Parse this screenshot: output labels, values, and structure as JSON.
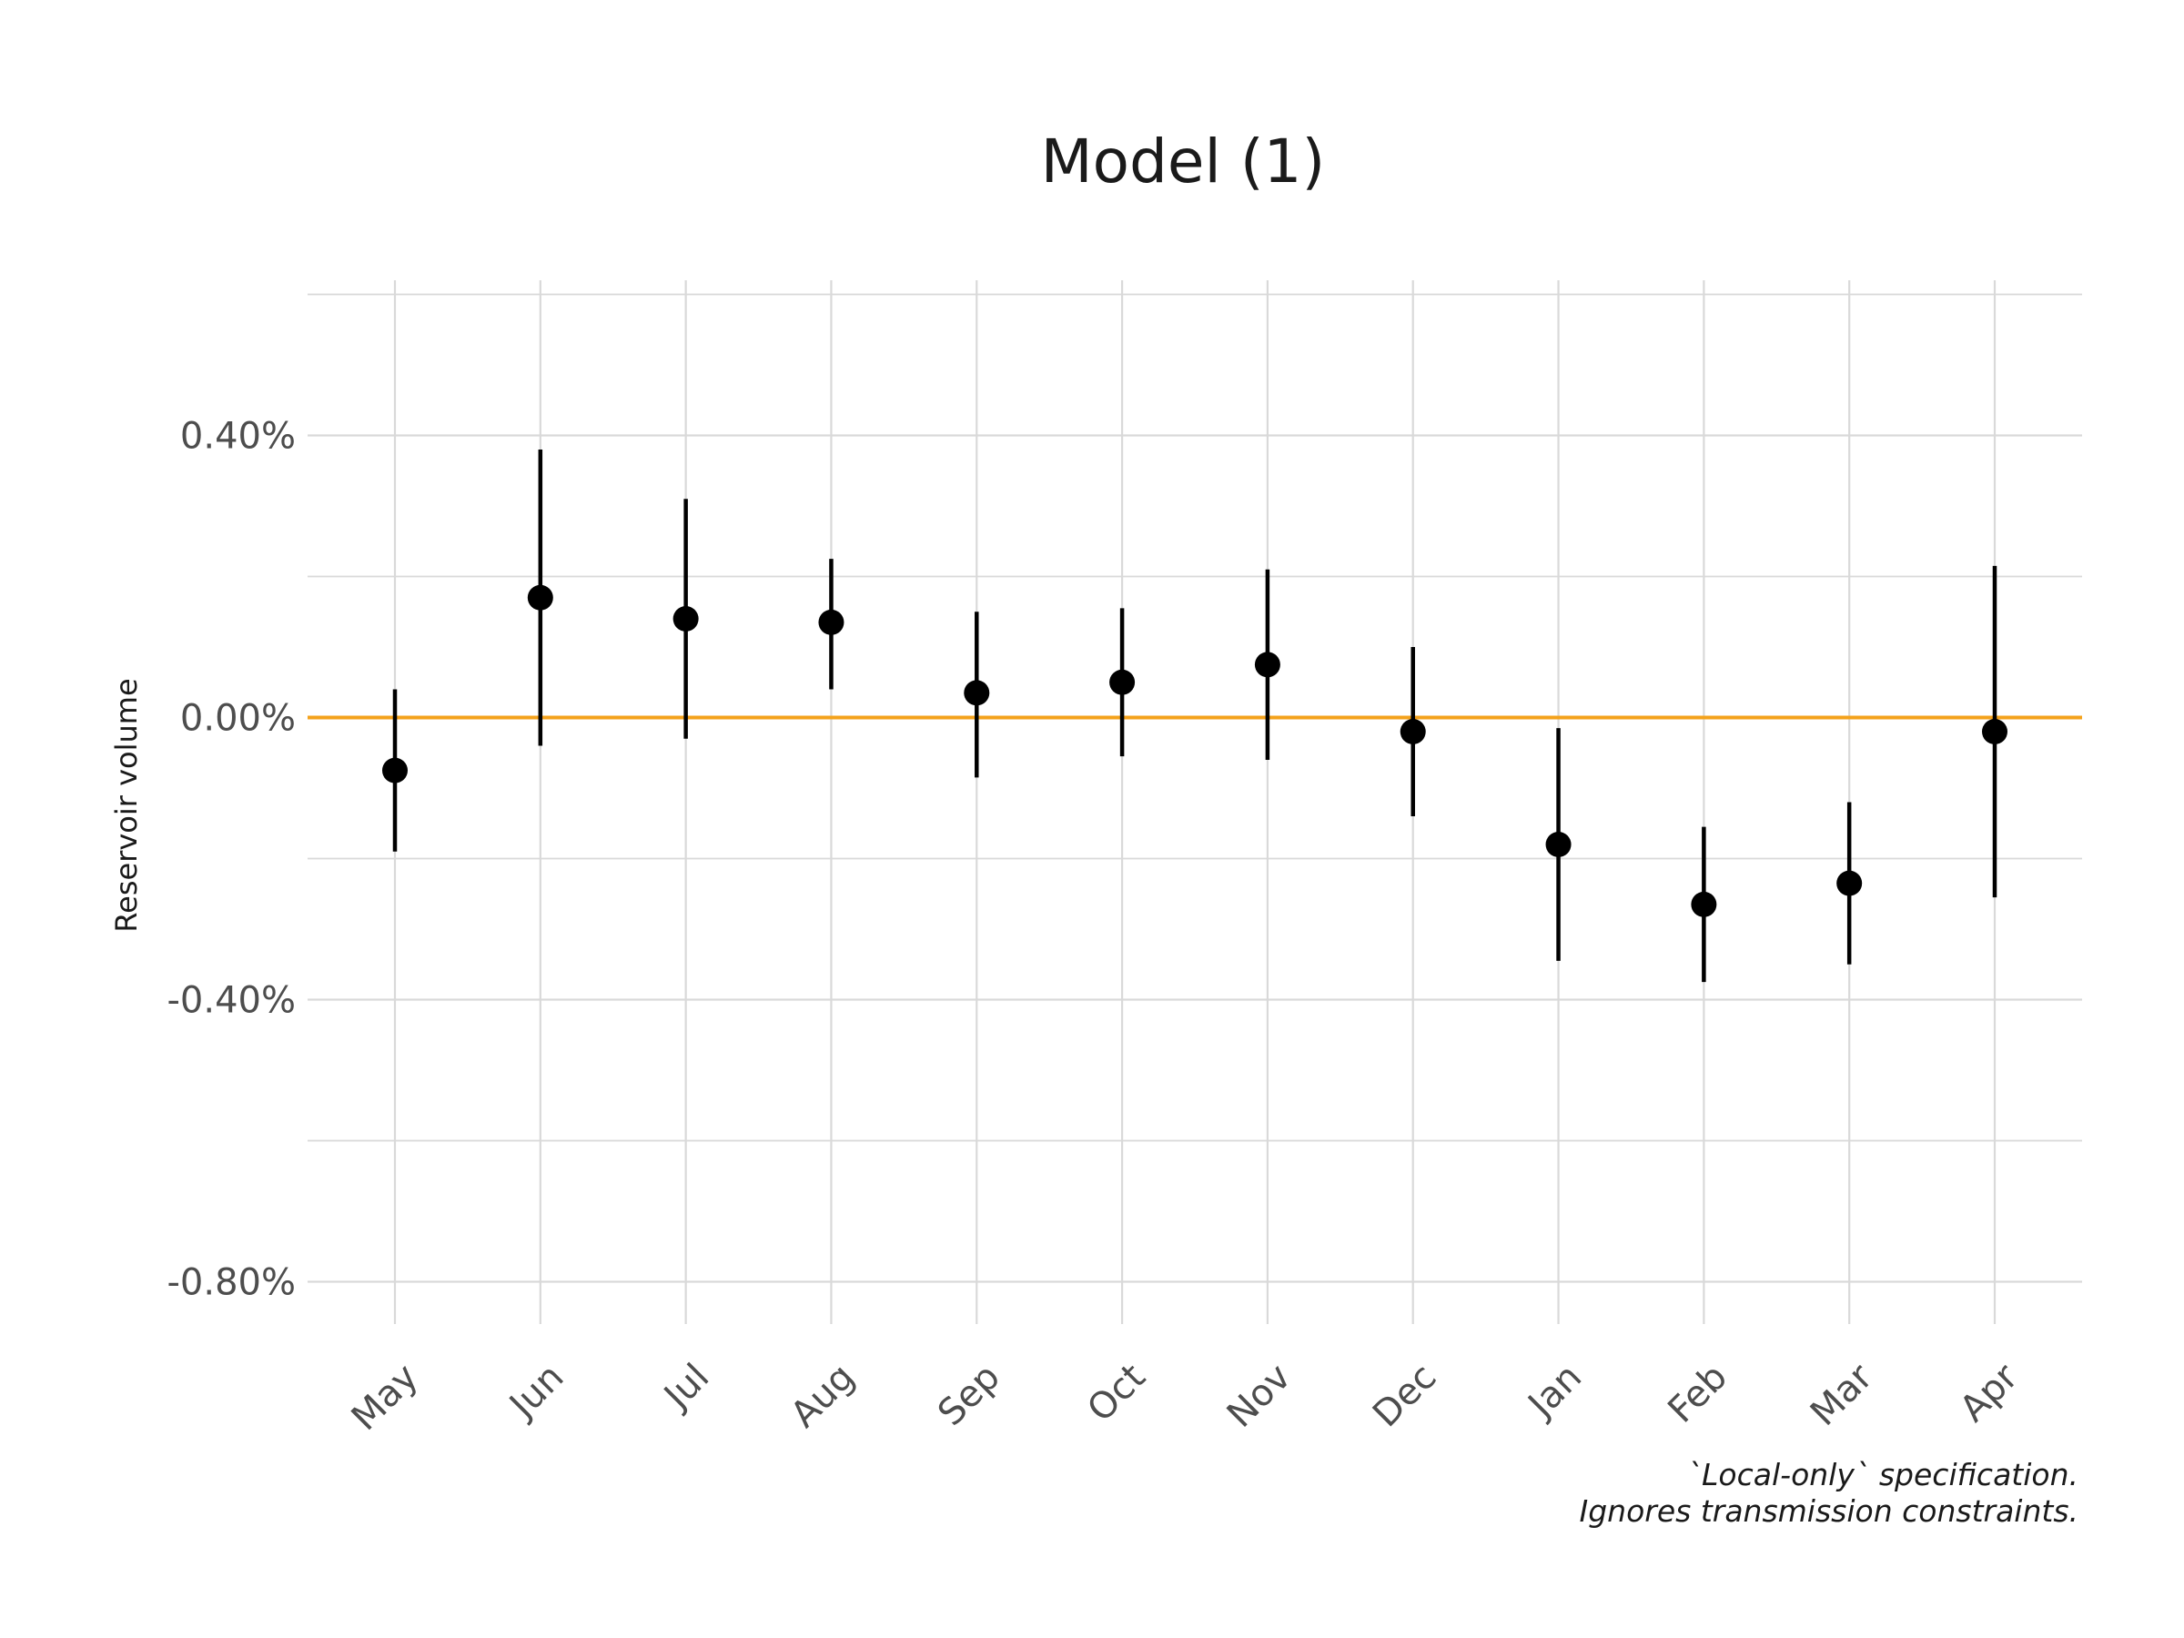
{
  "chart_data": {
    "type": "scatter",
    "title": "Model (1)",
    "xlabel": "",
    "ylabel": "Reservoir volume",
    "categories": [
      "May",
      "Jun",
      "Jul",
      "Aug",
      "Sep",
      "Oct",
      "Nov",
      "Dec",
      "Jan",
      "Feb",
      "Mar",
      "Apr"
    ],
    "series": [
      {
        "estimate": [
          -0.075,
          0.17,
          0.14,
          0.135,
          0.035,
          0.05,
          0.075,
          -0.02,
          -0.18,
          -0.265,
          -0.235,
          -0.02
        ],
        "ci_low": [
          -0.19,
          -0.04,
          -0.03,
          0.04,
          -0.085,
          -0.055,
          -0.06,
          -0.14,
          -0.345,
          -0.375,
          -0.35,
          -0.255
        ],
        "ci_high": [
          0.04,
          0.38,
          0.31,
          0.225,
          0.15,
          0.155,
          0.21,
          0.1,
          -0.015,
          -0.155,
          -0.12,
          0.215
        ]
      }
    ],
    "ylim": [
      -0.86,
      0.62
    ],
    "yticks": [
      0.4,
      0.0,
      -0.4,
      -0.8
    ],
    "ytick_labels": [
      "0.40%",
      "0.00%",
      "-0.40%",
      "-0.80%"
    ],
    "minor_gridlines": [
      0.6,
      0.2,
      -0.2,
      -0.6
    ],
    "reference_line": {
      "y": 0.0,
      "color": "#f4a21b"
    },
    "point_color": "#000000",
    "grid": true,
    "gridline_color": "#d9d9d9",
    "caption_lines": [
      "`Local-only` specification.",
      "Ignores transmission constraints."
    ]
  }
}
